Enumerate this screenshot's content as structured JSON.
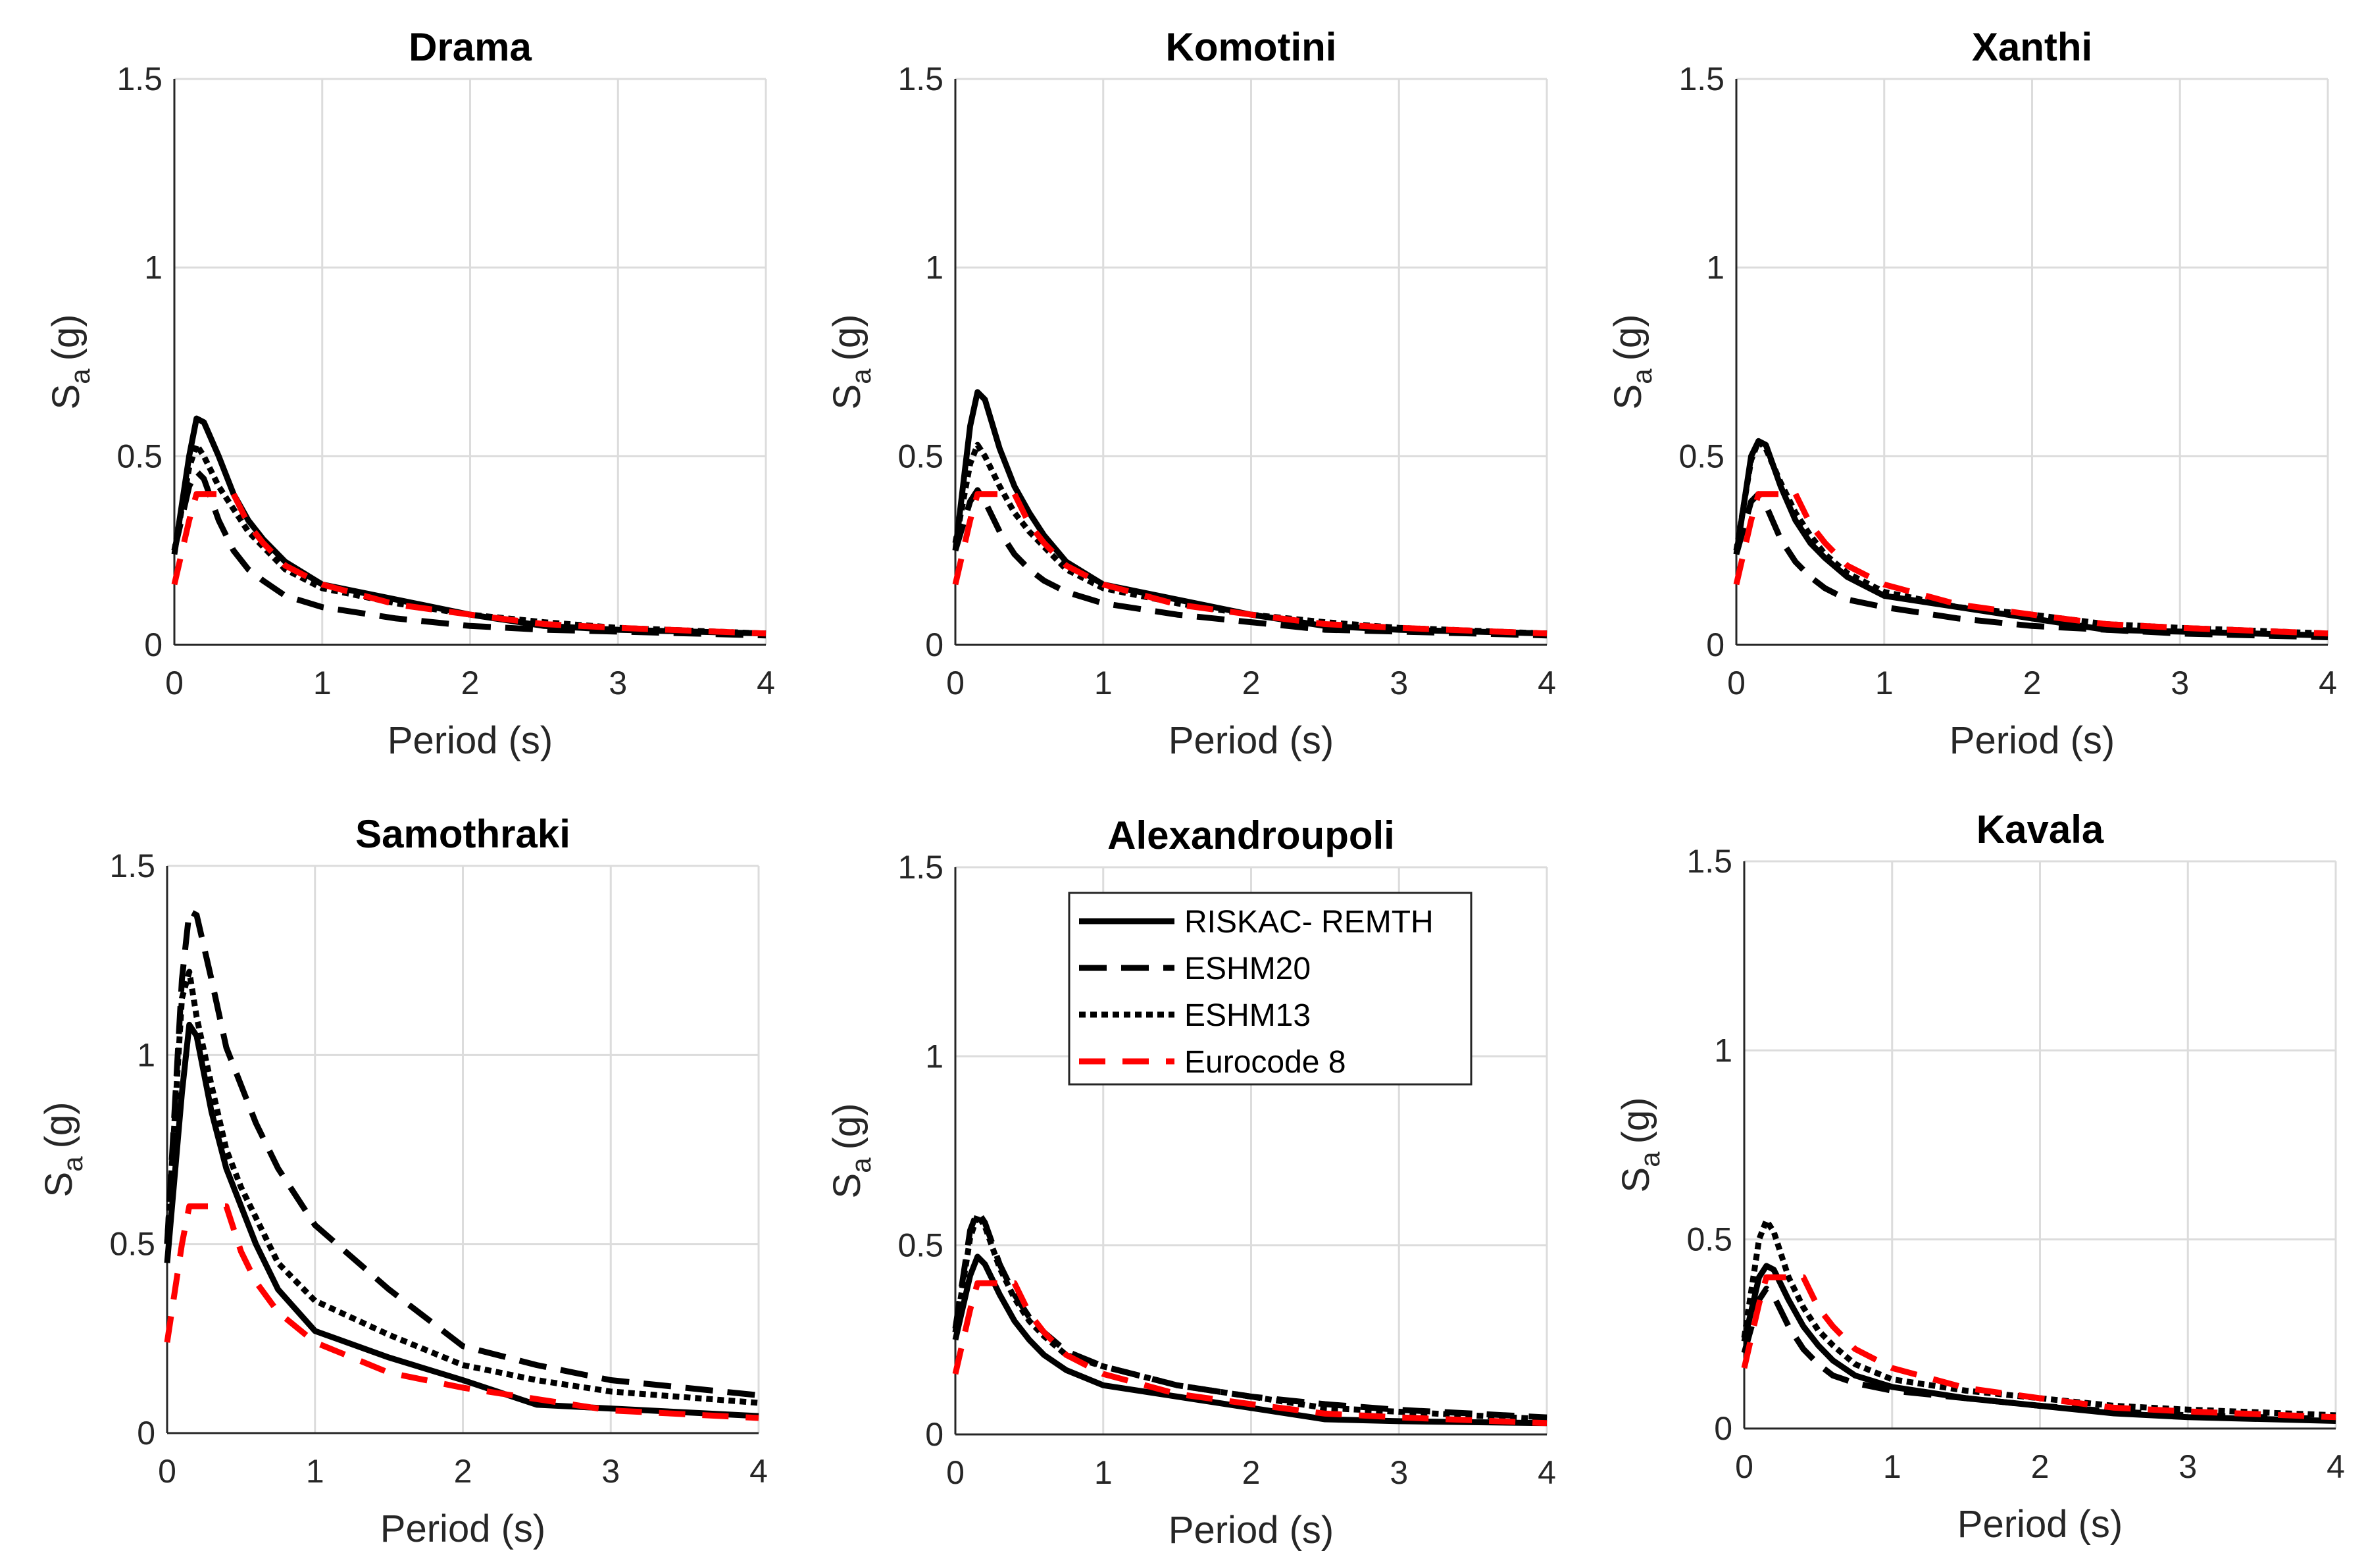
{
  "chart_data": [
    {
      "type": "line",
      "title": "Drama",
      "xlabel": "Period (s)",
      "ylabel": "S",
      "ylabel_sub": "a",
      "ylabel_unit": "(g)",
      "xlim": [
        0,
        4
      ],
      "ylim": [
        0,
        1.5
      ],
      "grid": true,
      "xticks": [
        "0",
        "1",
        "2",
        "3",
        "4"
      ],
      "yticks": [
        "0",
        "0.5",
        "1",
        "1.5"
      ],
      "x": [
        0,
        0.1,
        0.15,
        0.2,
        0.3,
        0.4,
        0.5,
        0.6,
        0.75,
        1,
        1.5,
        2,
        2.5,
        3,
        4
      ],
      "series": [
        {
          "name": "RISKAC- REMTH",
          "values": [
            0.24,
            0.5,
            0.6,
            0.59,
            0.5,
            0.4,
            0.33,
            0.28,
            0.22,
            0.16,
            0.12,
            0.08,
            0.05,
            0.04,
            0.03
          ]
        },
        {
          "name": "ESHM20",
          "values": [
            0.25,
            0.42,
            0.46,
            0.44,
            0.33,
            0.25,
            0.2,
            0.17,
            0.13,
            0.1,
            0.07,
            0.05,
            0.04,
            0.035,
            0.025
          ]
        },
        {
          "name": "ESHM13",
          "values": [
            0.25,
            0.47,
            0.53,
            0.5,
            0.42,
            0.36,
            0.3,
            0.26,
            0.2,
            0.15,
            0.11,
            0.08,
            0.06,
            0.045,
            0.03
          ]
        },
        {
          "name": "Eurocode 8",
          "values": [
            0.16,
            0.33,
            0.4,
            0.4,
            0.4,
            0.4,
            0.32,
            0.27,
            0.21,
            0.16,
            0.107,
            0.08,
            0.055,
            0.045,
            0.03
          ]
        }
      ]
    },
    {
      "type": "line",
      "title": "Komotini",
      "xlabel": "Period (s)",
      "ylabel": "S",
      "ylabel_sub": "a",
      "ylabel_unit": "(g)",
      "xlim": [
        0,
        4
      ],
      "ylim": [
        0,
        1.5
      ],
      "grid": true,
      "xticks": [
        "0",
        "1",
        "2",
        "3",
        "4"
      ],
      "yticks": [
        "0",
        "0.5",
        "1",
        "1.5"
      ],
      "x": [
        0,
        0.1,
        0.15,
        0.2,
        0.3,
        0.4,
        0.5,
        0.6,
        0.75,
        1,
        1.5,
        2,
        2.5,
        3,
        4
      ],
      "series": [
        {
          "name": "RISKAC- REMTH",
          "values": [
            0.25,
            0.58,
            0.67,
            0.65,
            0.52,
            0.42,
            0.35,
            0.29,
            0.22,
            0.16,
            0.12,
            0.08,
            0.05,
            0.04,
            0.03
          ]
        },
        {
          "name": "ESHM20",
          "values": [
            0.25,
            0.38,
            0.41,
            0.38,
            0.3,
            0.24,
            0.2,
            0.17,
            0.14,
            0.11,
            0.08,
            0.06,
            0.04,
            0.035,
            0.025
          ]
        },
        {
          "name": "ESHM13",
          "values": [
            0.27,
            0.48,
            0.53,
            0.5,
            0.42,
            0.35,
            0.3,
            0.26,
            0.2,
            0.15,
            0.11,
            0.08,
            0.06,
            0.045,
            0.03
          ]
        },
        {
          "name": "Eurocode 8",
          "values": [
            0.16,
            0.33,
            0.4,
            0.4,
            0.4,
            0.4,
            0.32,
            0.27,
            0.21,
            0.16,
            0.107,
            0.08,
            0.055,
            0.045,
            0.03
          ]
        }
      ]
    },
    {
      "type": "line",
      "title": "Xanthi",
      "xlabel": "Period (s)",
      "ylabel": "S",
      "ylabel_sub": "a",
      "ylabel_unit": "(g)",
      "xlim": [
        0,
        4
      ],
      "ylim": [
        0,
        1.5
      ],
      "grid": true,
      "xticks": [
        "0",
        "1",
        "2",
        "3",
        "4"
      ],
      "yticks": [
        "0",
        "0.5",
        "1",
        "1.5"
      ],
      "x": [
        0,
        0.1,
        0.15,
        0.2,
        0.3,
        0.4,
        0.5,
        0.6,
        0.75,
        1,
        1.5,
        2,
        2.5,
        3,
        4
      ],
      "series": [
        {
          "name": "RISKAC- REMTH",
          "values": [
            0.24,
            0.5,
            0.54,
            0.53,
            0.42,
            0.33,
            0.27,
            0.23,
            0.18,
            0.13,
            0.1,
            0.07,
            0.04,
            0.035,
            0.025
          ]
        },
        {
          "name": "ESHM20",
          "values": [
            0.24,
            0.38,
            0.4,
            0.37,
            0.28,
            0.22,
            0.18,
            0.15,
            0.12,
            0.1,
            0.07,
            0.05,
            0.04,
            0.03,
            0.02
          ]
        },
        {
          "name": "ESHM13",
          "values": [
            0.25,
            0.49,
            0.54,
            0.52,
            0.43,
            0.35,
            0.29,
            0.24,
            0.19,
            0.14,
            0.1,
            0.08,
            0.055,
            0.045,
            0.03
          ]
        },
        {
          "name": "Eurocode 8",
          "values": [
            0.16,
            0.33,
            0.4,
            0.4,
            0.4,
            0.4,
            0.32,
            0.27,
            0.21,
            0.16,
            0.107,
            0.08,
            0.055,
            0.045,
            0.03
          ]
        }
      ]
    },
    {
      "type": "line",
      "title": "Samothraki",
      "xlabel": "Period (s)",
      "ylabel": "S",
      "ylabel_sub": "a",
      "ylabel_unit": "(g)",
      "xlim": [
        0,
        4
      ],
      "ylim": [
        0,
        1.5
      ],
      "grid": true,
      "xticks": [
        "0",
        "1",
        "2",
        "3",
        "4"
      ],
      "yticks": [
        "0",
        "0.5",
        "1",
        "1.5"
      ],
      "x": [
        0,
        0.1,
        0.15,
        0.2,
        0.3,
        0.4,
        0.5,
        0.6,
        0.75,
        1,
        1.5,
        2,
        2.5,
        3,
        4
      ],
      "series": [
        {
          "name": "RISKAC- REMTH",
          "values": [
            0.45,
            0.9,
            1.08,
            1.05,
            0.85,
            0.7,
            0.6,
            0.5,
            0.38,
            0.27,
            0.2,
            0.14,
            0.075,
            0.065,
            0.045
          ]
        },
        {
          "name": "ESHM20",
          "values": [
            0.5,
            1.2,
            1.38,
            1.37,
            1.2,
            1.02,
            0.92,
            0.82,
            0.7,
            0.55,
            0.38,
            0.23,
            0.18,
            0.14,
            0.1
          ]
        },
        {
          "name": "ESHM13",
          "values": [
            0.5,
            1.15,
            1.22,
            1.1,
            0.92,
            0.75,
            0.65,
            0.57,
            0.45,
            0.35,
            0.26,
            0.18,
            0.14,
            0.11,
            0.08
          ]
        },
        {
          "name": "Eurocode 8",
          "values": [
            0.24,
            0.5,
            0.6,
            0.6,
            0.6,
            0.6,
            0.48,
            0.4,
            0.32,
            0.24,
            0.16,
            0.12,
            0.09,
            0.06,
            0.04
          ]
        }
      ]
    },
    {
      "type": "line",
      "title": "Alexandroupoli",
      "xlabel": "Period (s)",
      "ylabel": "S",
      "ylabel_sub": "a",
      "ylabel_unit": "(g)",
      "xlim": [
        0,
        4
      ],
      "ylim": [
        0,
        1.5
      ],
      "grid": true,
      "xticks": [
        "0",
        "1",
        "2",
        "3",
        "4"
      ],
      "yticks": [
        "0",
        "0.5",
        "1",
        "1.5"
      ],
      "legend": "top-right",
      "x": [
        0,
        0.1,
        0.15,
        0.2,
        0.3,
        0.4,
        0.5,
        0.6,
        0.75,
        1,
        1.5,
        2,
        2.5,
        3,
        4
      ],
      "series": [
        {
          "name": "RISKAC- REMTH",
          "values": [
            0.25,
            0.42,
            0.47,
            0.45,
            0.37,
            0.3,
            0.25,
            0.21,
            0.17,
            0.13,
            0.1,
            0.07,
            0.04,
            0.035,
            0.03
          ]
        },
        {
          "name": "ESHM20",
          "values": [
            0.28,
            0.54,
            0.59,
            0.56,
            0.45,
            0.37,
            0.31,
            0.27,
            0.22,
            0.18,
            0.13,
            0.1,
            0.08,
            0.065,
            0.045
          ]
        },
        {
          "name": "ESHM13",
          "values": [
            0.27,
            0.52,
            0.58,
            0.55,
            0.44,
            0.36,
            0.3,
            0.26,
            0.21,
            0.18,
            0.13,
            0.1,
            0.07,
            0.06,
            0.04
          ]
        },
        {
          "name": "Eurocode 8",
          "values": [
            0.16,
            0.33,
            0.4,
            0.4,
            0.4,
            0.4,
            0.32,
            0.27,
            0.21,
            0.16,
            0.107,
            0.08,
            0.055,
            0.045,
            0.03
          ]
        }
      ]
    },
    {
      "type": "line",
      "title": "Kavala",
      "xlabel": "Period (s)",
      "ylabel": "S",
      "ylabel_sub": "a",
      "ylabel_unit": "(g)",
      "xlim": [
        0,
        4
      ],
      "ylim": [
        0,
        1.5
      ],
      "grid": true,
      "xticks": [
        "0",
        "1",
        "2",
        "3",
        "4"
      ],
      "yticks": [
        "0",
        "0.5",
        "1",
        "1.5"
      ],
      "x": [
        0,
        0.1,
        0.15,
        0.2,
        0.3,
        0.4,
        0.5,
        0.6,
        0.75,
        1,
        1.5,
        2,
        2.5,
        3,
        4
      ],
      "series": [
        {
          "name": "RISKAC- REMTH",
          "values": [
            0.23,
            0.4,
            0.43,
            0.42,
            0.34,
            0.27,
            0.22,
            0.18,
            0.14,
            0.11,
            0.08,
            0.06,
            0.04,
            0.03,
            0.02
          ]
        },
        {
          "name": "ESHM20",
          "values": [
            0.2,
            0.34,
            0.37,
            0.35,
            0.27,
            0.21,
            0.17,
            0.14,
            0.12,
            0.1,
            0.08,
            0.06,
            0.045,
            0.035,
            0.025
          ]
        },
        {
          "name": "ESHM13",
          "values": [
            0.24,
            0.5,
            0.55,
            0.52,
            0.4,
            0.32,
            0.26,
            0.22,
            0.17,
            0.13,
            0.1,
            0.08,
            0.06,
            0.05,
            0.035
          ]
        },
        {
          "name": "Eurocode 8",
          "values": [
            0.16,
            0.33,
            0.4,
            0.4,
            0.4,
            0.4,
            0.32,
            0.27,
            0.21,
            0.16,
            0.107,
            0.08,
            0.055,
            0.045,
            0.03
          ]
        }
      ]
    }
  ],
  "legend": {
    "items": [
      "RISKAC- REMTH",
      "ESHM20",
      "ESHM13",
      "Eurocode 8"
    ]
  },
  "colors": {
    "black": "#000000",
    "red": "#ff0000",
    "grid": "#dcdcdc",
    "axis": "#262626"
  }
}
